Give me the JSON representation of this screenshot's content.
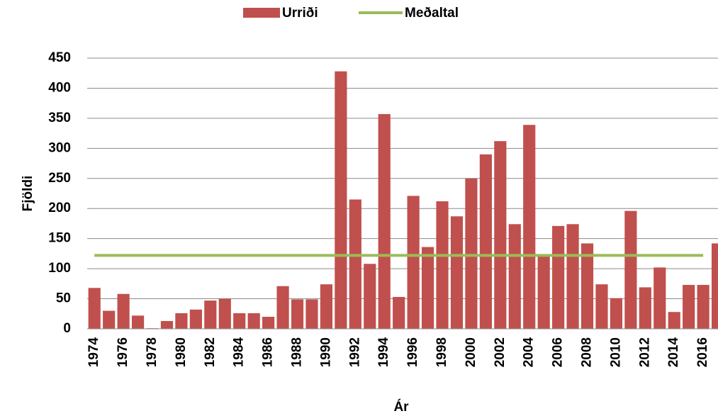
{
  "chart_data": {
    "type": "bar",
    "categories": [
      "1974",
      null,
      "1976",
      null,
      "1978",
      null,
      "1980",
      null,
      "1982",
      null,
      "1984",
      null,
      "1986",
      null,
      "1988",
      null,
      "1990",
      null,
      "1992",
      null,
      "1994",
      null,
      "1996",
      null,
      "1998",
      null,
      "2000",
      null,
      "2002",
      null,
      "2004",
      null,
      "2006",
      null,
      "2008",
      null,
      "2010",
      null,
      "2012",
      null,
      "2014",
      null,
      "2016",
      null
    ],
    "series": [
      {
        "name": "Urriði",
        "type": "bar",
        "color": "#c0504d",
        "values": [
          68,
          30,
          58,
          22,
          1,
          13,
          26,
          32,
          47,
          50,
          26,
          26,
          20,
          71,
          49,
          49,
          74,
          428,
          215,
          108,
          357,
          53,
          221,
          136,
          212,
          187,
          250,
          290,
          312,
          174,
          339,
          122,
          171,
          174,
          142,
          74,
          51,
          196,
          69,
          102,
          28,
          73,
          73,
          142
        ]
      },
      {
        "name": "Meðaltal",
        "type": "line",
        "color": "#9bbb59",
        "values": [
          122,
          122,
          122,
          122,
          122,
          122,
          122,
          122,
          122,
          122,
          122,
          122,
          122,
          122,
          122,
          122,
          122,
          122,
          122,
          122,
          122,
          122,
          122,
          122,
          122,
          122,
          122,
          122,
          122,
          122,
          122,
          122,
          122,
          122,
          122,
          122,
          122,
          122,
          122,
          122,
          122,
          122,
          122,
          null
        ]
      }
    ],
    "x_label": "Ár",
    "y_label": "Fjöldi",
    "ylim": [
      0,
      450
    ],
    "yticks": [
      0,
      50,
      100,
      150,
      200,
      250,
      300,
      350,
      400,
      450
    ],
    "grid": true,
    "legend": "top"
  }
}
